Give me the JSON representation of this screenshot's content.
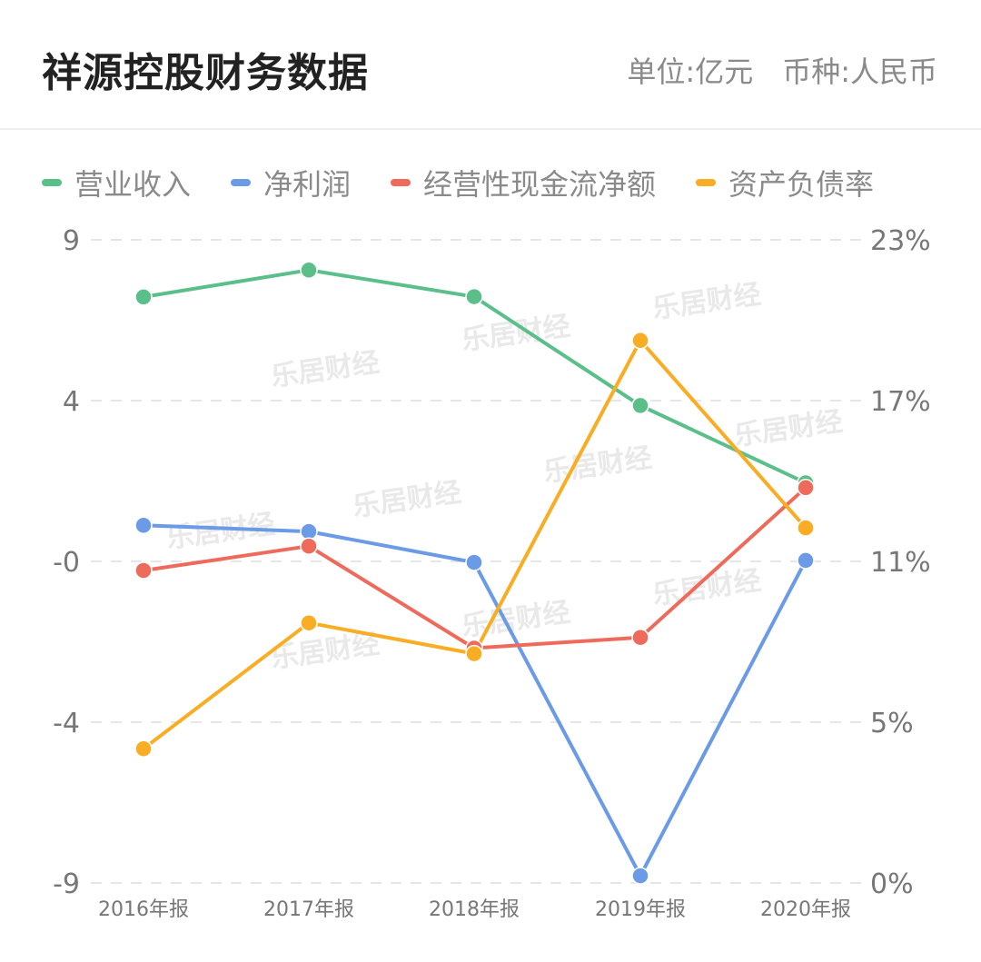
{
  "header": {
    "title": "祥源控股财务数据",
    "unit": "单位:亿元",
    "currency": "币种:人民币"
  },
  "watermark": "乐居财经",
  "chart_data": {
    "type": "line",
    "categories": [
      "2016年报",
      "2017年报",
      "2018年报",
      "2019年报",
      "2020年报"
    ],
    "left_axis": {
      "ticks": [
        "9",
        "4",
        "-0",
        "-4",
        "-9"
      ],
      "ylim": [
        -9.6,
        10.2
      ]
    },
    "right_axis": {
      "ticks": [
        "23%",
        "17%",
        "11%",
        "5%",
        "0%"
      ],
      "ylim": [
        0,
        23
      ]
    },
    "grid": true,
    "legend_position": "top",
    "series": [
      {
        "name": "营业收入",
        "axis": "left",
        "color": "#5bbf8a",
        "values": [
          8.44,
          9.27,
          8.45,
          5.1,
          2.72
        ]
      },
      {
        "name": "净利润",
        "axis": "left",
        "color": "#6b9ae6",
        "values": [
          1.41,
          1.22,
          0.27,
          -9.38,
          0.33
        ]
      },
      {
        "name": "经营性现金流净额",
        "axis": "left",
        "color": "#ee6b5c",
        "values": [
          0.02,
          0.77,
          -2.37,
          -2.04,
          2.57
        ]
      },
      {
        "name": "资产负债率",
        "axis": "right",
        "color": "#f9ad24",
        "values": [
          4.8,
          9.3,
          8.2,
          19.4,
          12.7
        ]
      }
    ]
  }
}
